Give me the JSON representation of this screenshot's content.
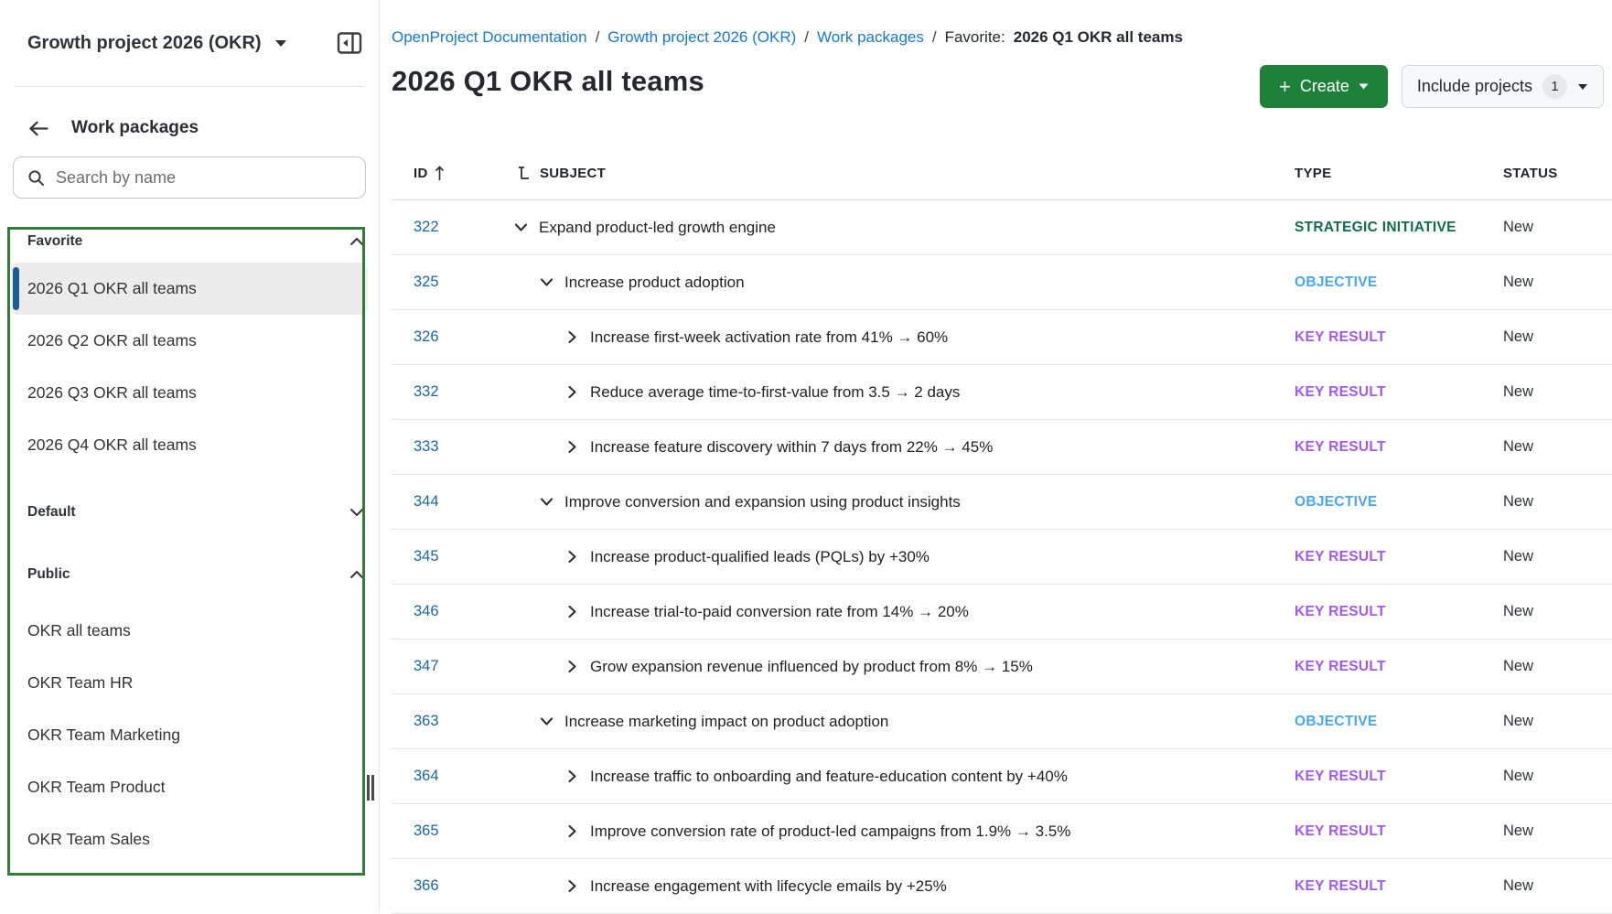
{
  "sidebar": {
    "project_name": "Growth project 2026 (OKR)",
    "heading": "Work packages",
    "search_placeholder": "Search by name",
    "sections": [
      {
        "label": "Favorite",
        "expanded": true,
        "items": [
          {
            "label": "2026 Q1 OKR all teams",
            "selected": true
          },
          {
            "label": "2026 Q2 OKR all teams",
            "selected": false
          },
          {
            "label": "2026 Q3 OKR all teams",
            "selected": false
          },
          {
            "label": "2026 Q4 OKR all teams",
            "selected": false
          }
        ]
      },
      {
        "label": "Default",
        "expanded": false,
        "items": []
      },
      {
        "label": "Public",
        "expanded": true,
        "items": [
          {
            "label": "OKR all teams",
            "selected": false
          },
          {
            "label": "OKR Team HR",
            "selected": false
          },
          {
            "label": "OKR Team Marketing",
            "selected": false
          },
          {
            "label": "OKR Team Product",
            "selected": false
          },
          {
            "label": "OKR Team Sales",
            "selected": false
          }
        ]
      }
    ]
  },
  "breadcrumb": {
    "links": [
      "OpenProject Documentation",
      "Growth project 2026 (OKR)",
      "Work packages"
    ],
    "separator": "/",
    "current_prefix": "Favorite:",
    "current": "2026 Q1 OKR all teams"
  },
  "page": {
    "title": "2026 Q1 OKR all teams",
    "create_button": "Create",
    "include_projects_button": "Include projects",
    "include_projects_count": "1"
  },
  "table": {
    "columns": [
      "ID",
      "SUBJECT",
      "TYPE",
      "STATUS"
    ],
    "rows": [
      {
        "id": "322",
        "subject": "Expand product-led growth engine",
        "type": "STRATEGIC INITIATIVE",
        "status": "New",
        "level": 0,
        "expanded": true
      },
      {
        "id": "325",
        "subject": "Increase product adoption",
        "type": "OBJECTIVE",
        "status": "New",
        "level": 1,
        "expanded": true
      },
      {
        "id": "326",
        "subject": "Increase first-week activation rate from 41% → 60%",
        "type": "KEY RESULT",
        "status": "New",
        "level": 2,
        "expanded": false
      },
      {
        "id": "332",
        "subject": "Reduce average time-to-first-value from 3.5 → 2 days",
        "type": "KEY RESULT",
        "status": "New",
        "level": 2,
        "expanded": false
      },
      {
        "id": "333",
        "subject": "Increase feature discovery within 7 days from 22% → 45%",
        "type": "KEY RESULT",
        "status": "New",
        "level": 2,
        "expanded": false
      },
      {
        "id": "344",
        "subject": "Improve conversion and expansion using product insights",
        "type": "OBJECTIVE",
        "status": "New",
        "level": 1,
        "expanded": true
      },
      {
        "id": "345",
        "subject": "Increase product-qualified leads (PQLs) by +30%",
        "type": "KEY RESULT",
        "status": "New",
        "level": 2,
        "expanded": false
      },
      {
        "id": "346",
        "subject": "Increase trial-to-paid conversion rate from 14% → 20%",
        "type": "KEY RESULT",
        "status": "New",
        "level": 2,
        "expanded": false
      },
      {
        "id": "347",
        "subject": "Grow expansion revenue influenced by product from 8% → 15%",
        "type": "KEY RESULT",
        "status": "New",
        "level": 2,
        "expanded": false
      },
      {
        "id": "363",
        "subject": "Increase marketing impact on product adoption",
        "type": "OBJECTIVE",
        "status": "New",
        "level": 1,
        "expanded": true
      },
      {
        "id": "364",
        "subject": "Increase traffic to onboarding and feature-education content by +40%",
        "type": "KEY RESULT",
        "status": "New",
        "level": 2,
        "expanded": false
      },
      {
        "id": "365",
        "subject": "Improve conversion rate of product-led campaigns from 1.9% → 3.5%",
        "type": "KEY RESULT",
        "status": "New",
        "level": 2,
        "expanded": false
      },
      {
        "id": "366",
        "subject": "Increase engagement with lifecycle emails by +25%",
        "type": "KEY RESULT",
        "status": "New",
        "level": 2,
        "expanded": false
      }
    ]
  },
  "colors": {
    "type_colors": {
      "STRATEGIC INITIATIVE": "#136b4d",
      "OBJECTIVE": "#47a5f3",
      "KEY RESULT": "#a158f2"
    },
    "annotation_green": "#2f7d36",
    "create_button_green": "#1e8139",
    "id_link_blue": "#1a67a3",
    "breadcrumb_blue": "#1779d0",
    "selected_pill_blue": "#1b5c99"
  }
}
